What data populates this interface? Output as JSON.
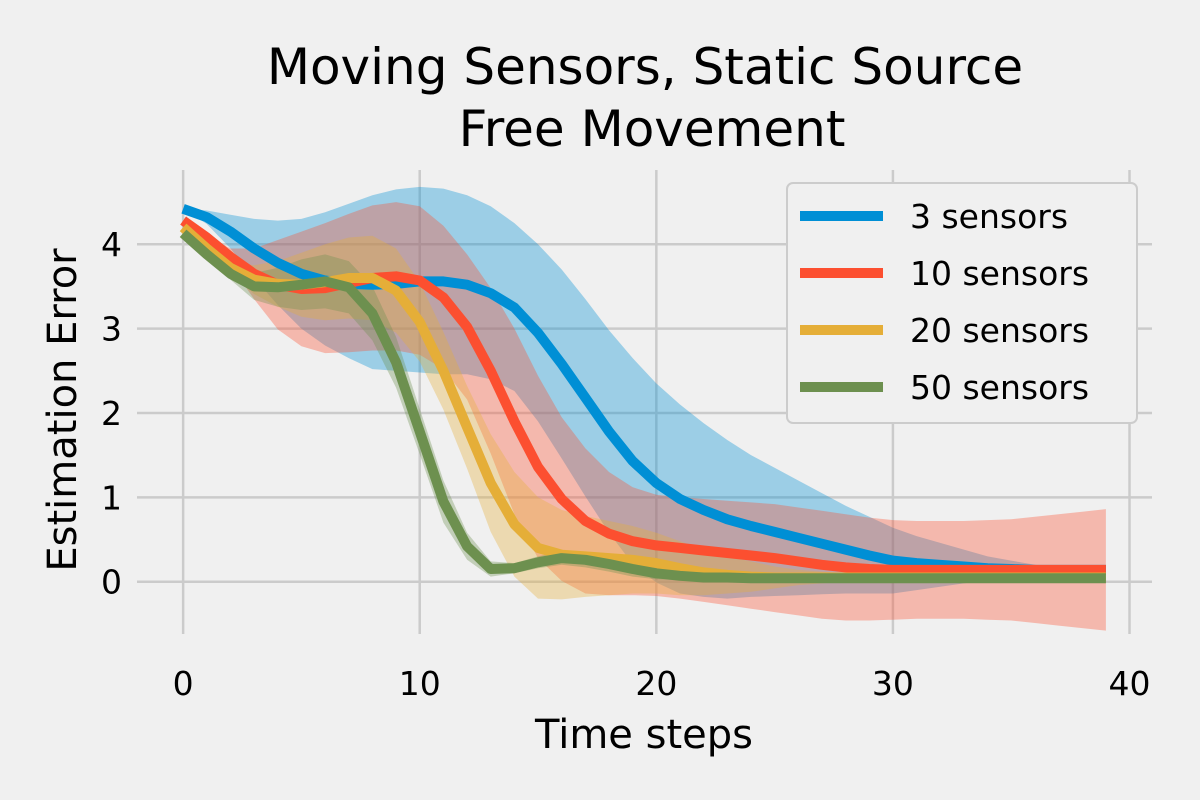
{
  "chart_data": {
    "type": "line",
    "title_line1": "Moving Sensors, Static Source",
    "title_line2": "Free Movement",
    "xlabel": "Time steps",
    "ylabel": "Estimation Error",
    "xlim": [
      -1.95,
      40.95
    ],
    "ylim": [
      -0.62,
      4.88
    ],
    "xticks": [
      0,
      10,
      20,
      30,
      40
    ],
    "yticks": [
      0,
      1,
      2,
      3,
      4
    ],
    "xtick_labels": [
      "0",
      "10",
      "20",
      "30",
      "40"
    ],
    "ytick_labels": [
      "0",
      "1",
      "2",
      "3",
      "4"
    ],
    "grid": true,
    "legend_position": "top-right",
    "x": [
      0,
      1,
      2,
      3,
      4,
      5,
      6,
      7,
      8,
      9,
      10,
      11,
      12,
      13,
      14,
      15,
      16,
      17,
      18,
      19,
      20,
      21,
      22,
      23,
      24,
      25,
      26,
      27,
      28,
      29,
      30,
      31,
      32,
      33,
      34,
      35,
      36,
      37,
      38,
      39
    ],
    "series": [
      {
        "name": "3 sensors",
        "color": "#008fd5",
        "values": [
          4.42,
          4.32,
          4.15,
          3.95,
          3.78,
          3.65,
          3.57,
          3.53,
          3.52,
          3.53,
          3.56,
          3.56,
          3.52,
          3.42,
          3.25,
          2.95,
          2.58,
          2.18,
          1.78,
          1.43,
          1.17,
          0.98,
          0.85,
          0.74,
          0.66,
          0.59,
          0.52,
          0.45,
          0.38,
          0.31,
          0.25,
          0.22,
          0.2,
          0.18,
          0.16,
          0.15,
          0.14,
          0.14,
          0.14,
          0.14
        ],
        "upper": [
          4.42,
          4.4,
          4.35,
          4.3,
          4.28,
          4.3,
          4.38,
          4.48,
          4.58,
          4.65,
          4.68,
          4.66,
          4.58,
          4.45,
          4.25,
          4.0,
          3.7,
          3.35,
          2.98,
          2.65,
          2.35,
          2.1,
          1.88,
          1.68,
          1.5,
          1.35,
          1.2,
          1.05,
          0.9,
          0.77,
          0.64,
          0.54,
          0.46,
          0.38,
          0.3,
          0.25,
          0.2,
          0.16,
          0.14,
          0.14
        ],
        "lower": [
          4.42,
          4.24,
          3.95,
          3.6,
          3.28,
          3.0,
          2.8,
          2.65,
          2.52,
          2.5,
          2.48,
          2.46,
          2.46,
          2.4,
          2.26,
          1.9,
          1.46,
          1.01,
          0.58,
          0.21,
          -0.01,
          -0.14,
          -0.18,
          -0.2,
          -0.18,
          -0.17,
          -0.16,
          -0.15,
          -0.14,
          -0.14,
          -0.14,
          -0.1,
          -0.06,
          -0.02,
          0.02,
          0.05,
          0.08,
          0.1,
          0.12,
          0.14
        ]
      },
      {
        "name": "10 sensors",
        "color": "#fc4f30",
        "values": [
          4.28,
          4.08,
          3.85,
          3.65,
          3.52,
          3.47,
          3.48,
          3.54,
          3.6,
          3.62,
          3.57,
          3.37,
          3.02,
          2.5,
          1.9,
          1.36,
          0.98,
          0.72,
          0.57,
          0.48,
          0.43,
          0.4,
          0.37,
          0.34,
          0.31,
          0.28,
          0.24,
          0.2,
          0.17,
          0.15,
          0.14,
          0.14,
          0.14,
          0.14,
          0.14,
          0.14,
          0.14,
          0.14,
          0.14,
          0.14
        ],
        "upper": [
          4.28,
          4.1,
          3.95,
          3.95,
          4.05,
          4.15,
          4.25,
          4.36,
          4.46,
          4.5,
          4.45,
          4.22,
          3.88,
          3.48,
          3.0,
          2.44,
          1.95,
          1.58,
          1.3,
          1.12,
          1.03,
          1.0,
          0.98,
          0.96,
          0.94,
          0.92,
          0.88,
          0.84,
          0.8,
          0.76,
          0.73,
          0.72,
          0.72,
          0.72,
          0.73,
          0.74,
          0.77,
          0.8,
          0.83,
          0.86
        ],
        "lower": [
          4.28,
          4.06,
          3.75,
          3.35,
          2.99,
          2.79,
          2.71,
          2.72,
          2.74,
          2.74,
          2.69,
          2.52,
          2.16,
          1.52,
          0.8,
          0.28,
          0.01,
          -0.14,
          -0.16,
          -0.16,
          -0.17,
          -0.2,
          -0.24,
          -0.28,
          -0.32,
          -0.36,
          -0.4,
          -0.44,
          -0.46,
          -0.46,
          -0.45,
          -0.44,
          -0.44,
          -0.44,
          -0.45,
          -0.46,
          -0.49,
          -0.52,
          -0.55,
          -0.58
        ]
      },
      {
        "name": "20 sensors",
        "color": "#e5ae38",
        "values": [
          4.2,
          3.95,
          3.72,
          3.58,
          3.53,
          3.52,
          3.55,
          3.6,
          3.6,
          3.45,
          3.08,
          2.5,
          1.83,
          1.17,
          0.68,
          0.4,
          0.32,
          0.3,
          0.28,
          0.26,
          0.22,
          0.16,
          0.11,
          0.08,
          0.06,
          0.05,
          0.05,
          0.05,
          0.05,
          0.05,
          0.05,
          0.05,
          0.05,
          0.05,
          0.05,
          0.05,
          0.05,
          0.05,
          0.05,
          0.05
        ],
        "upper": [
          4.2,
          3.95,
          3.8,
          3.75,
          3.8,
          3.9,
          4.0,
          4.08,
          4.1,
          3.95,
          3.55,
          2.96,
          2.32,
          1.75,
          1.3,
          1.0,
          0.85,
          0.78,
          0.72,
          0.66,
          0.58,
          0.48,
          0.38,
          0.3,
          0.24,
          0.18,
          0.14,
          0.12,
          0.1,
          0.09,
          0.08,
          0.07,
          0.06,
          0.06,
          0.05,
          0.05,
          0.05,
          0.05,
          0.05,
          0.05
        ],
        "lower": [
          4.2,
          3.95,
          3.64,
          3.41,
          3.26,
          3.14,
          3.1,
          3.12,
          3.1,
          2.95,
          2.61,
          2.04,
          1.34,
          0.59,
          0.06,
          -0.2,
          -0.21,
          -0.18,
          -0.16,
          -0.14,
          -0.14,
          -0.16,
          -0.16,
          -0.14,
          -0.12,
          -0.08,
          -0.04,
          -0.02,
          0.0,
          0.01,
          0.02,
          0.03,
          0.04,
          0.04,
          0.05,
          0.05,
          0.05,
          0.05,
          0.05,
          0.05
        ]
      },
      {
        "name": "50 sensors",
        "color": "#6d904f",
        "values": [
          4.13,
          3.88,
          3.65,
          3.5,
          3.49,
          3.52,
          3.56,
          3.49,
          3.18,
          2.6,
          1.78,
          0.95,
          0.42,
          0.15,
          0.16,
          0.23,
          0.28,
          0.26,
          0.21,
          0.15,
          0.1,
          0.07,
          0.05,
          0.05,
          0.04,
          0.04,
          0.04,
          0.04,
          0.04,
          0.04,
          0.04,
          0.04,
          0.04,
          0.04,
          0.04,
          0.04,
          0.04,
          0.04,
          0.04,
          0.04
        ],
        "upper": [
          4.13,
          3.89,
          3.72,
          3.66,
          3.72,
          3.82,
          3.88,
          3.8,
          3.5,
          2.9,
          2.05,
          1.2,
          0.58,
          0.24,
          0.22,
          0.3,
          0.36,
          0.35,
          0.3,
          0.24,
          0.17,
          0.12,
          0.09,
          0.07,
          0.06,
          0.05,
          0.05,
          0.05,
          0.05,
          0.05,
          0.05,
          0.05,
          0.05,
          0.05,
          0.05,
          0.05,
          0.05,
          0.05,
          0.05,
          0.05
        ],
        "lower": [
          4.13,
          3.87,
          3.58,
          3.34,
          3.26,
          3.22,
          3.24,
          3.18,
          2.86,
          2.3,
          1.51,
          0.7,
          0.26,
          0.06,
          0.1,
          0.16,
          0.2,
          0.17,
          0.12,
          0.06,
          0.03,
          0.02,
          0.01,
          0.03,
          0.02,
          0.03,
          0.03,
          0.03,
          0.03,
          0.03,
          0.03,
          0.03,
          0.03,
          0.03,
          0.03,
          0.03,
          0.03,
          0.03,
          0.03,
          0.03
        ]
      }
    ]
  }
}
